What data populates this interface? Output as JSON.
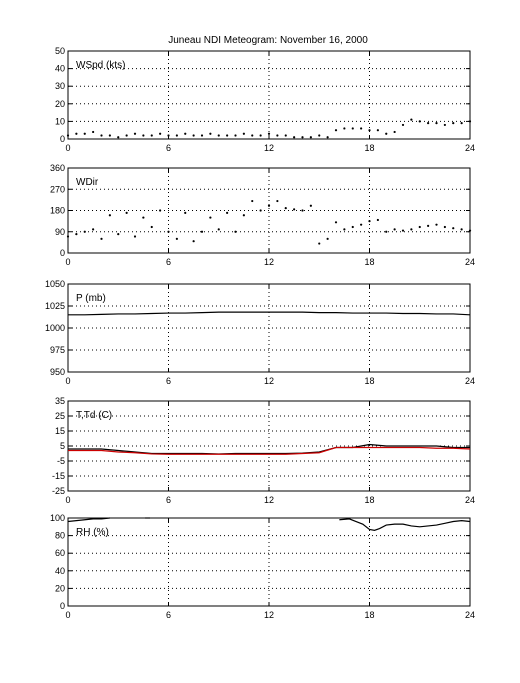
{
  "title": "Juneau NDI Meteogram:  November 16, 2000",
  "colors": {
    "frame": "#000000",
    "grid": "#000000",
    "trace": "#000000",
    "dewpoint": "#cc0000",
    "background": "#ffffff"
  },
  "chart_data": [
    {
      "type": "scatter",
      "label": "WSpd (kts)",
      "xlim": [
        0,
        24
      ],
      "xticks": [
        0,
        6,
        12,
        18,
        24
      ],
      "ylim": [
        0,
        50
      ],
      "yticks": [
        0,
        10,
        20,
        30,
        40,
        50
      ],
      "grid": true,
      "series": [
        {
          "x": [
            0,
            0.5,
            1,
            1.5,
            2,
            2.5,
            3,
            3.5,
            4,
            4.5,
            5,
            5.5,
            6,
            6.5,
            7,
            7.5,
            8,
            8.5,
            9,
            9.5,
            10,
            10.5,
            11,
            11.5,
            12,
            12.5,
            13,
            13.5,
            14,
            14.5,
            15,
            15.5,
            16,
            16.5,
            17,
            17.5,
            18,
            18.5,
            19,
            19.5,
            20,
            20.5,
            21,
            21.5,
            22,
            22.5,
            23,
            23.5,
            24
          ],
          "y": [
            2,
            3,
            3,
            4,
            2,
            2,
            1,
            2,
            3,
            2,
            2,
            3,
            2,
            2,
            3,
            2,
            2,
            3,
            2,
            2,
            2,
            3,
            2,
            2,
            3,
            2,
            2,
            1,
            1,
            1,
            2,
            1,
            5,
            6,
            6,
            6,
            5,
            5,
            3,
            4,
            8,
            11,
            10,
            9,
            9,
            8,
            9,
            9,
            10
          ]
        }
      ]
    },
    {
      "type": "scatter",
      "label": "WDir",
      "xlim": [
        0,
        24
      ],
      "xticks": [
        0,
        6,
        12,
        18,
        24
      ],
      "ylim": [
        0,
        360
      ],
      "yticks": [
        0,
        90,
        180,
        270,
        360
      ],
      "grid": true,
      "series": [
        {
          "x": [
            0,
            0.5,
            1,
            1.5,
            2,
            2.5,
            3,
            3.5,
            4,
            4.5,
            5,
            5.5,
            6,
            6.5,
            7,
            7.5,
            8,
            8.5,
            9,
            9.5,
            10,
            10.5,
            11,
            11.5,
            12,
            12.5,
            13,
            13.5,
            14,
            14.5,
            15,
            15.5,
            16,
            16.5,
            17,
            17.5,
            18,
            18.5,
            19,
            19.5,
            20,
            20.5,
            21,
            21.5,
            22,
            22.5,
            23,
            23.5,
            24
          ],
          "y": [
            70,
            80,
            90,
            100,
            60,
            160,
            80,
            170,
            70,
            150,
            110,
            180,
            90,
            60,
            170,
            50,
            90,
            150,
            100,
            170,
            90,
            160,
            220,
            180,
            200,
            220,
            190,
            185,
            180,
            200,
            40,
            60,
            130,
            100,
            110,
            120,
            135,
            140,
            90,
            100,
            95,
            100,
            110,
            115,
            120,
            110,
            105,
            100,
            95
          ]
        }
      ]
    },
    {
      "type": "line",
      "label": "P (mb)",
      "xlim": [
        0,
        24
      ],
      "xticks": [
        0,
        6,
        12,
        18,
        24
      ],
      "ylim": [
        950,
        1050
      ],
      "yticks": [
        950,
        975,
        1000,
        1025,
        1050
      ],
      "grid": true,
      "series": [
        {
          "x": [
            0,
            1,
            2,
            3,
            4,
            5,
            6,
            7,
            8,
            9,
            10,
            11,
            12,
            13,
            14,
            15,
            16,
            17,
            18,
            19,
            20,
            21,
            22,
            23,
            24
          ],
          "y": [
            1015,
            1015,
            1015.5,
            1016,
            1016,
            1016.5,
            1017,
            1017,
            1017.5,
            1018,
            1018,
            1018,
            1018,
            1018,
            1018,
            1017.5,
            1017.5,
            1017,
            1017,
            1017,
            1016.5,
            1016.5,
            1016,
            1016,
            1015
          ]
        }
      ]
    },
    {
      "type": "line",
      "label": "T,Td (C)",
      "xlim": [
        0,
        24
      ],
      "xticks": [
        0,
        6,
        12,
        18,
        24
      ],
      "ylim": [
        -25,
        35
      ],
      "yticks": [
        -25,
        -15,
        -5,
        5,
        15,
        25,
        35
      ],
      "grid": true,
      "series": [
        {
          "color": "#000000",
          "x": [
            0,
            1,
            2,
            3,
            4,
            5,
            6,
            7,
            8,
            9,
            10,
            11,
            12,
            13,
            14,
            15,
            16,
            17,
            18,
            19,
            20,
            21,
            22,
            23,
            24
          ],
          "y": [
            3,
            3,
            3,
            2,
            1,
            0,
            0,
            0,
            0,
            -0.3,
            0,
            0,
            0,
            0,
            0.3,
            1,
            4,
            4,
            6,
            5,
            5,
            5,
            5,
            4,
            4
          ]
        },
        {
          "color": "#cc0000",
          "x": [
            0,
            1,
            2,
            3,
            4,
            5,
            6,
            7,
            8,
            9,
            10,
            11,
            12,
            13,
            14,
            15,
            16,
            17,
            18,
            19,
            20,
            21,
            22,
            23,
            24
          ],
          "y": [
            2,
            2,
            2,
            1,
            0.5,
            -0.3,
            -0.5,
            -0.5,
            -0.5,
            -0.5,
            -0.5,
            -0.5,
            -0.5,
            -0.5,
            0,
            0.5,
            4,
            4,
            4,
            4,
            4,
            4,
            3.5,
            3.5,
            3
          ]
        }
      ]
    },
    {
      "type": "line",
      "label": "RH (%)",
      "xlim": [
        0,
        24
      ],
      "xticks": [
        0,
        6,
        12,
        18,
        24
      ],
      "ylim": [
        0,
        100
      ],
      "yticks": [
        0,
        20,
        40,
        60,
        80,
        100
      ],
      "grid": true,
      "series": [
        {
          "x": [
            0,
            0.5,
            1,
            1.5,
            2,
            2.5
          ],
          "y": [
            96,
            97,
            98,
            99,
            99,
            100
          ]
        },
        {
          "x": [
            4.6,
            4.9
          ],
          "y": [
            100,
            100
          ]
        },
        {
          "x": [
            16.2,
            16.8,
            17.2,
            17.6,
            18,
            18.3,
            18.6,
            19,
            19.5,
            20,
            20.5,
            21,
            21.5,
            22,
            22.5,
            23,
            23.5,
            24
          ],
          "y": [
            98,
            99,
            96,
            93,
            87,
            86,
            88,
            92,
            93,
            93,
            91,
            90,
            91,
            92,
            94,
            96,
            97,
            96
          ]
        }
      ]
    }
  ]
}
